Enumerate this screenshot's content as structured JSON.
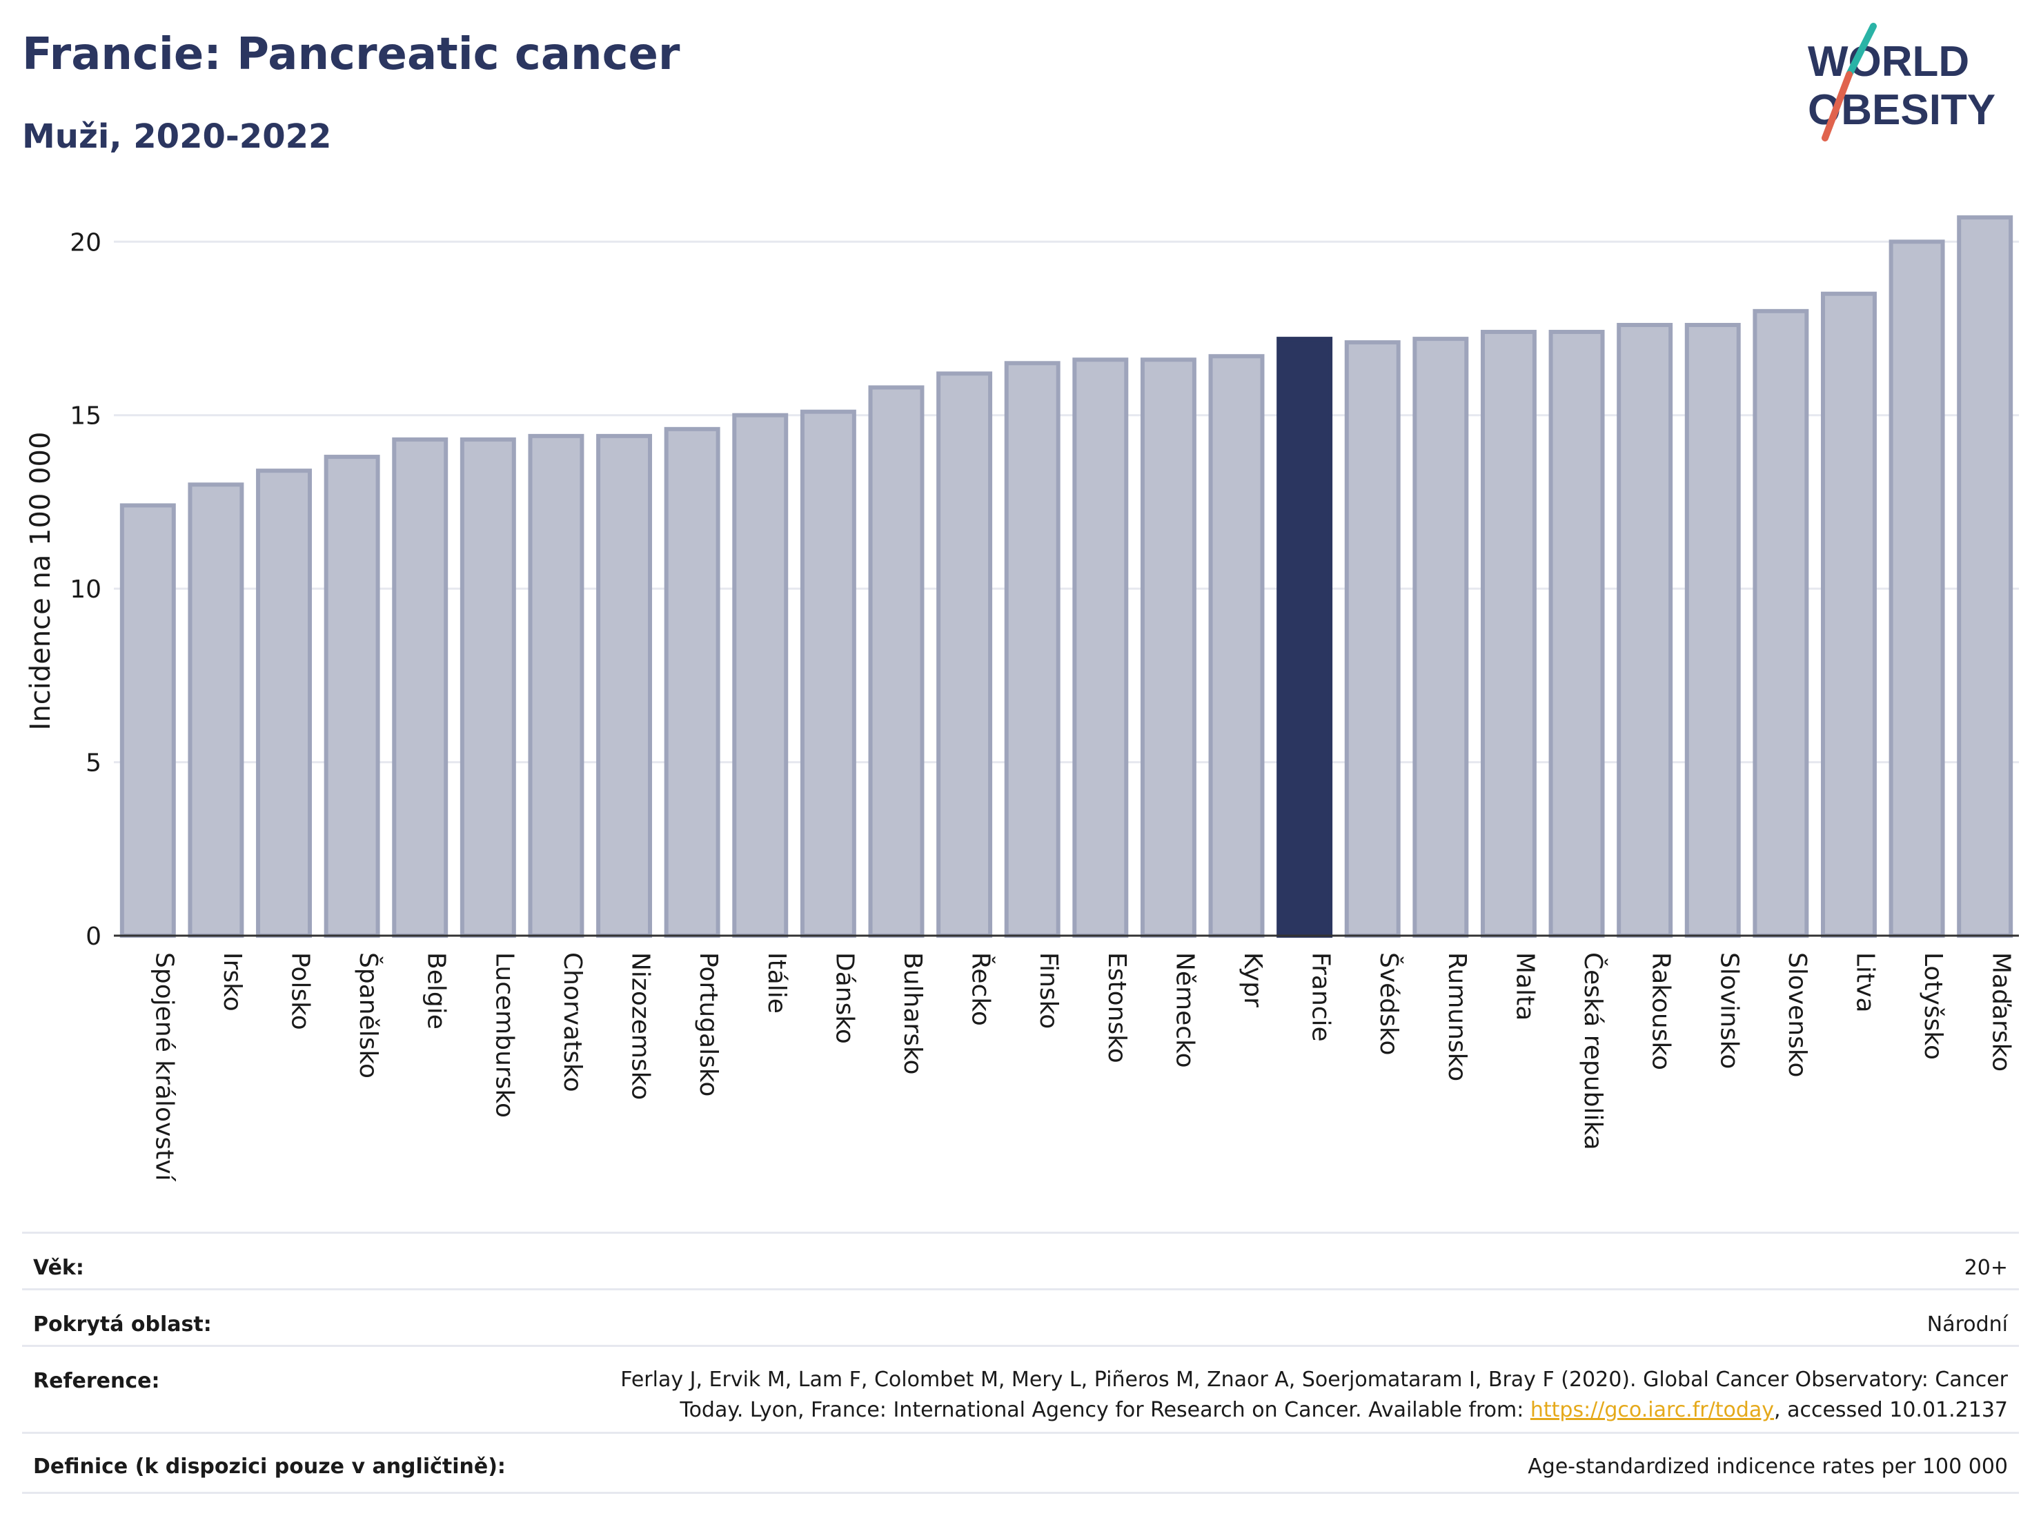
{
  "header": {
    "title": "Francie: Pancreatic cancer",
    "subtitle": "Muži, 2020-2022",
    "logo_line1": "WORLD",
    "logo_line2": "OBESITY"
  },
  "colors": {
    "bar_default": "#bcc0cf",
    "bar_border": "#9ea4bb",
    "bar_highlight": "#2b3660",
    "title": "#2b3660",
    "logo_teal": "#2ab3a6",
    "logo_red": "#e0634d",
    "link": "#e5a91a"
  },
  "chart_data": {
    "type": "bar",
    "title": "Francie: Pancreatic cancer",
    "subtitle": "Muži, 2020-2022",
    "xlabel": "",
    "ylabel": "Incidence na 100 000",
    "ylim": [
      0,
      21
    ],
    "yticks": [
      0,
      5,
      10,
      15,
      20
    ],
    "grid": true,
    "highlight": "Francie",
    "categories": [
      "Spojené království",
      "Irsko",
      "Polsko",
      "Španělsko",
      "Belgie",
      "Lucembursko",
      "Chorvatsko",
      "Nizozemsko",
      "Portugalsko",
      "Itálie",
      "Dánsko",
      "Bulharsko",
      "Řecko",
      "Finsko",
      "Estonsko",
      "Německo",
      "Kypr",
      "Francie",
      "Švédsko",
      "Rumunsko",
      "Malta",
      "Česká republika",
      "Rakousko",
      "Slovinsko",
      "Slovensko",
      "Litva",
      "Lotyšsko",
      "Maďarsko"
    ],
    "values": [
      12.4,
      13.0,
      13.4,
      13.8,
      14.3,
      14.3,
      14.4,
      14.4,
      14.6,
      15.0,
      15.1,
      15.8,
      16.2,
      16.5,
      16.6,
      16.6,
      16.7,
      17.2,
      17.1,
      17.2,
      17.4,
      17.4,
      17.6,
      17.6,
      18.0,
      18.5,
      20.0,
      20.7
    ]
  },
  "info": {
    "age_label": "Věk:",
    "age_value": "20+",
    "area_label": "Pokrytá oblast:",
    "area_value": "Národní",
    "ref_label": "Reference:",
    "ref_text_1": "Ferlay J, Ervik M, Lam F, Colombet M, Mery L, Piñeros M, Znaor A, Soerjomataram I, Bray F (2020). Global Cancer Observatory: Cancer",
    "ref_text_2": "Today. Lyon, France: International Agency for Research on Cancer. Available from: ",
    "ref_link": "https://gco.iarc.fr/today",
    "ref_text_3": ", accessed 10.01.2137",
    "def_label": "Definice (k dispozici pouze v angličtině):",
    "def_value": "Age-standardized indicence rates per 100 000"
  }
}
